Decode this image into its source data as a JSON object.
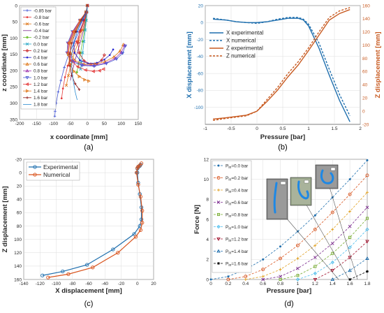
{
  "chart_data": [
    {
      "id": "a",
      "type": "line",
      "panel_label": "(a)",
      "xlabel": "x coordinate [mm]",
      "ylabel": "z coordinate [mm]",
      "xlim": [
        -200,
        150
      ],
      "ylim": [
        0,
        350
      ],
      "y_reversed": true,
      "xticks": [
        -200,
        -150,
        -100,
        -50,
        0,
        50,
        100,
        150
      ],
      "yticks": [
        0,
        50,
        100,
        150,
        200,
        250,
        300,
        350
      ],
      "grid": true,
      "legend": "top-left",
      "series": [
        {
          "name": "-0.85 bar",
          "color": "#4a5bd4",
          "marker": "plus",
          "x": [
            0,
            -3,
            -10,
            -22,
            -38,
            -55,
            -68,
            -78,
            -86,
            -92,
            -95,
            -96
          ],
          "y": [
            0,
            20,
            45,
            75,
            110,
            150,
            190,
            230,
            265,
            300,
            325,
            340
          ]
        },
        {
          "name": "-0.8 bar",
          "color": "#e53a3a",
          "marker": "dot",
          "x": [
            0,
            -2,
            -8,
            -18,
            -32,
            -47,
            -58,
            -66,
            -72,
            -76
          ],
          "y": [
            0,
            20,
            45,
            75,
            110,
            150,
            185,
            220,
            255,
            285
          ]
        },
        {
          "name": "-0.6 bar",
          "color": "#e07a1f",
          "marker": "x",
          "x": [
            0,
            -2,
            -6,
            -14,
            -26,
            -38,
            -48,
            -56,
            -62
          ],
          "y": [
            0,
            20,
            45,
            75,
            110,
            145,
            180,
            215,
            245
          ]
        },
        {
          "name": "-0.4 bar",
          "color": "#7b2a8e",
          "marker": "none",
          "x": [
            0,
            -2,
            -5,
            -11,
            -20,
            -30,
            -38,
            -45,
            -50
          ],
          "y": [
            0,
            20,
            45,
            75,
            110,
            145,
            175,
            205,
            230
          ]
        },
        {
          "name": "-0.2 bar",
          "color": "#6cbf2e",
          "marker": "star",
          "x": [
            0,
            -1,
            -4,
            -8,
            -14,
            -20,
            -26,
            -31
          ],
          "y": [
            0,
            20,
            45,
            75,
            110,
            145,
            178,
            205
          ]
        },
        {
          "name": "0.0 bar",
          "color": "#2aa8c8",
          "marker": "x",
          "x": [
            0,
            -1,
            -3,
            -6,
            -10,
            -14,
            -18,
            -20
          ],
          "y": [
            0,
            20,
            45,
            75,
            110,
            145,
            175,
            195
          ]
        },
        {
          "name": "0.2 bar",
          "color": "#c8262a",
          "marker": "diamond",
          "x": [
            0,
            -2,
            -10,
            -22,
            -28,
            -24,
            -10,
            10,
            28,
            42,
            50
          ],
          "y": [
            0,
            20,
            45,
            80,
            115,
            145,
            170,
            180,
            178,
            168,
            152
          ]
        },
        {
          "name": "0.4 bar",
          "color": "#2a2ad0",
          "marker": "dot",
          "x": [
            0,
            -3,
            -14,
            -30,
            -40,
            -38,
            -22,
            2,
            28,
            50,
            66,
            76
          ],
          "y": [
            0,
            20,
            45,
            80,
            115,
            145,
            168,
            178,
            176,
            166,
            152,
            135
          ]
        },
        {
          "name": "0.6 bar",
          "color": "#e07a1f",
          "marker": "triangle-up",
          "x": [
            0,
            -4,
            -18,
            -36,
            -50,
            -50,
            -38,
            -10,
            22,
            52,
            78,
            96,
            106
          ],
          "y": [
            0,
            20,
            45,
            80,
            115,
            145,
            168,
            180,
            180,
            172,
            158,
            140,
            120
          ]
        },
        {
          "name": "0.8 bar",
          "color": "#a03ab0",
          "marker": "triangle-up",
          "x": [
            0,
            -4,
            -20,
            -40,
            -54,
            -55,
            -42,
            -14,
            20,
            54,
            82,
            100,
            110
          ],
          "y": [
            0,
            20,
            45,
            80,
            115,
            145,
            170,
            182,
            184,
            176,
            162,
            144,
            122
          ]
        },
        {
          "name": "1.0 bar",
          "color": "#4a5bd4",
          "marker": "triangle-down",
          "x": [
            0,
            -4,
            -22,
            -44,
            -58,
            -60,
            -46,
            -16,
            20,
            56,
            86,
            104,
            112
          ],
          "y": [
            0,
            20,
            45,
            80,
            115,
            145,
            172,
            184,
            186,
            178,
            164,
            146,
            124
          ]
        },
        {
          "name": "1.2 bar",
          "color": "#e53a3a",
          "marker": "triangle-left",
          "x": [
            0,
            -4,
            -22,
            -42,
            -56,
            -58,
            -48,
            -28,
            -5,
            18,
            36,
            48
          ],
          "y": [
            0,
            20,
            45,
            80,
            115,
            145,
            170,
            188,
            198,
            202,
            200,
            195
          ]
        },
        {
          "name": "1.4 bar",
          "color": "#e07a1f",
          "marker": "triangle-right",
          "x": [
            0,
            -4,
            -20,
            -38,
            -52,
            -56,
            -52,
            -40,
            -24,
            -8,
            4
          ],
          "y": [
            0,
            20,
            45,
            80,
            115,
            150,
            180,
            202,
            218,
            228,
            232
          ]
        },
        {
          "name": "1.6 bar",
          "color": "#8e1a1a",
          "marker": "plus",
          "x": [
            0,
            -4,
            -18,
            -34,
            -46,
            -52,
            -52,
            -46,
            -36,
            -24
          ],
          "y": [
            0,
            20,
            45,
            80,
            115,
            150,
            185,
            215,
            240,
            258
          ]
        },
        {
          "name": "1.8 bar",
          "color": "#2a8ad0",
          "marker": "none",
          "x": [
            0,
            -3,
            -16,
            -30,
            -40,
            -46,
            -46,
            -42,
            -36,
            -30
          ],
          "y": [
            0,
            20,
            45,
            80,
            115,
            150,
            190,
            230,
            265,
            290
          ]
        }
      ]
    },
    {
      "id": "b",
      "type": "line",
      "panel_label": "(b)",
      "xlabel": "Pressure [bar]",
      "ylabel": "X displacement [mm]",
      "ylabel_right": "Z displacement [mm]",
      "xlim": [
        -1,
        2
      ],
      "ylim": [
        -120,
        20
      ],
      "ylim_right": [
        -20,
        160
      ],
      "xticks": [
        -1,
        -0.5,
        0,
        0.5,
        1,
        1.5,
        2
      ],
      "yticks": [
        20,
        0,
        -20,
        -40,
        -60,
        -80,
        -100
      ],
      "yticks_right": [
        160,
        140,
        120,
        100,
        80,
        60,
        40,
        20,
        0,
        -20
      ],
      "grid": true,
      "legend": "top-left",
      "series": [
        {
          "name": "X experimental",
          "axis": "left",
          "color": "#1f6fae",
          "dash": false,
          "x": [
            -0.85,
            -0.6,
            -0.4,
            -0.2,
            0.0,
            0.2,
            0.4,
            0.6,
            0.8,
            0.9,
            1.0,
            1.2,
            1.4,
            1.6,
            1.8
          ],
          "y": [
            4,
            3,
            1,
            0,
            0,
            1,
            3,
            5,
            5,
            3,
            -4,
            -30,
            -62,
            -92,
            -117
          ]
        },
        {
          "name": "X numerical",
          "axis": "left",
          "color": "#1f6fae",
          "dash": true,
          "x": [
            -0.85,
            -0.6,
            -0.4,
            -0.2,
            0.0,
            0.2,
            0.4,
            0.6,
            0.8,
            0.9,
            1.0,
            1.2,
            1.4,
            1.6,
            1.8
          ],
          "y": [
            5,
            3,
            1,
            0,
            -1,
            1,
            4,
            6,
            6,
            4,
            -2,
            -24,
            -55,
            -85,
            -110
          ]
        },
        {
          "name": "Z experimental",
          "axis": "right",
          "color": "#c85a20",
          "dash": false,
          "x": [
            -0.85,
            -0.6,
            -0.4,
            -0.2,
            0.0,
            0.2,
            0.4,
            0.6,
            0.8,
            1.0,
            1.2,
            1.4,
            1.6,
            1.8
          ],
          "y": [
            -12,
            -10,
            -8,
            -6,
            0,
            15,
            32,
            52,
            70,
            92,
            115,
            138,
            148,
            154
          ]
        },
        {
          "name": "Z numerical",
          "axis": "right",
          "color": "#c85a20",
          "dash": true,
          "x": [
            -0.85,
            -0.6,
            -0.4,
            -0.2,
            0.0,
            0.2,
            0.4,
            0.6,
            0.8,
            1.0,
            1.2,
            1.4,
            1.6,
            1.8
          ],
          "y": [
            -14,
            -11,
            -9,
            -7,
            0,
            18,
            36,
            57,
            75,
            96,
            120,
            142,
            152,
            157
          ]
        }
      ]
    },
    {
      "id": "c",
      "type": "line",
      "panel_label": "(c)",
      "xlabel": "X displacement [mm]",
      "ylabel": "Z displacement [mm]",
      "xlim": [
        -140,
        20
      ],
      "ylim": [
        -20,
        160
      ],
      "y_reversed": true,
      "xticks": [
        -140,
        -120,
        -100,
        -80,
        -60,
        -40,
        -20,
        0,
        20
      ],
      "yticks": [
        -20,
        0,
        20,
        40,
        60,
        80,
        100,
        120,
        140,
        160
      ],
      "grid": true,
      "legend": "top-left",
      "series": [
        {
          "name": "Experimental",
          "color": "#1f6fae",
          "marker": "circle",
          "x": [
            4,
            3,
            1,
            0,
            0,
            1,
            3,
            5,
            5,
            3,
            -4,
            -30,
            -62,
            -92,
            -117
          ],
          "y": [
            -12,
            -10,
            -8,
            -6,
            0,
            15,
            32,
            52,
            70,
            80,
            92,
            115,
            138,
            148,
            154
          ]
        },
        {
          "name": "Numerical",
          "color": "#d9541e",
          "marker": "circle",
          "x": [
            5,
            3,
            1,
            0,
            -1,
            1,
            4,
            6,
            6,
            4,
            -2,
            -24,
            -55,
            -85,
            -110
          ],
          "y": [
            -14,
            -11,
            -9,
            -7,
            0,
            18,
            36,
            57,
            75,
            86,
            96,
            120,
            142,
            152,
            157
          ]
        }
      ]
    },
    {
      "id": "d",
      "type": "line",
      "panel_label": "(d)",
      "xlabel": "Pressure [bar]",
      "ylabel": "Force [N]",
      "xlim": [
        0,
        1.8
      ],
      "ylim": [
        0,
        12
      ],
      "xticks": [
        0,
        0.2,
        0.4,
        0.6,
        0.8,
        1,
        1.2,
        1.4,
        1.6,
        1.8
      ],
      "yticks": [
        0,
        2,
        4,
        6,
        8,
        10,
        12
      ],
      "grid": true,
      "legend": "top-left",
      "legend_prefix": "P",
      "legend_subscript": "in",
      "series": [
        {
          "name": "=0.0 bar",
          "color": "#1f6fae",
          "marker": "dot",
          "p0": 0.0,
          "x": [
            0,
            0.2,
            0.4,
            0.6,
            0.8,
            1.0,
            1.2,
            1.4,
            1.6,
            1.8
          ],
          "y": [
            0.0,
            0.3,
            1.0,
            2.0,
            3.3,
            4.8,
            6.4,
            8.2,
            10.0,
            11.9
          ]
        },
        {
          "name": "=0.2 bar",
          "color": "#d9541e",
          "marker": "circle",
          "p0": 0.2,
          "x": [
            0.2,
            0.4,
            0.6,
            0.8,
            1.0,
            1.2,
            1.4,
            1.6,
            1.8
          ],
          "y": [
            0.0,
            0.3,
            1.0,
            2.1,
            3.4,
            5.0,
            6.7,
            8.5,
            10.4
          ]
        },
        {
          "name": "=0.4 bar",
          "color": "#e0a020",
          "marker": "plus",
          "p0": 0.4,
          "x": [
            0.4,
            0.6,
            0.8,
            1.0,
            1.2,
            1.4,
            1.6,
            1.8
          ],
          "y": [
            0.0,
            0.3,
            1.0,
            2.1,
            3.4,
            5.0,
            6.8,
            8.7
          ]
        },
        {
          "name": "=0.6 bar",
          "color": "#7b2a8e",
          "marker": "x",
          "p0": 0.6,
          "x": [
            0.6,
            0.8,
            1.0,
            1.2,
            1.4,
            1.6,
            1.8
          ],
          "y": [
            0.0,
            0.3,
            1.1,
            2.2,
            3.6,
            5.3,
            7.2
          ]
        },
        {
          "name": "=0.8 bar",
          "color": "#77ac30",
          "marker": "square",
          "p0": 0.8,
          "x": [
            0.8,
            1.0,
            1.2,
            1.4,
            1.6,
            1.8
          ],
          "y": [
            0.0,
            0.4,
            1.3,
            2.6,
            4.2,
            6.1
          ]
        },
        {
          "name": "=1.0 bar",
          "color": "#4dbeee",
          "marker": "diamond",
          "p0": 1.0,
          "x": [
            1.0,
            1.2,
            1.4,
            1.6,
            1.8
          ],
          "y": [
            0.0,
            0.6,
            1.7,
            3.2,
            5.0
          ]
        },
        {
          "name": "=1.2 bar",
          "color": "#a2142f",
          "marker": "triangle-down",
          "p0": 1.2,
          "x": [
            1.2,
            1.4,
            1.6,
            1.8
          ],
          "y": [
            0.0,
            0.9,
            2.2,
            3.8
          ]
        },
        {
          "name": "=1.4 bar",
          "color": "#1f6fae",
          "marker": "triangle-up",
          "p0": 1.4,
          "x": [
            1.4,
            1.6,
            1.8
          ],
          "y": [
            0.0,
            0.9,
            2.1
          ]
        },
        {
          "name": "=1.6 bar",
          "color": "#000000",
          "marker": "star",
          "p0": 1.6,
          "x": [
            1.6,
            1.8
          ],
          "y": [
            0.0,
            0.8
          ]
        }
      ]
    }
  ]
}
